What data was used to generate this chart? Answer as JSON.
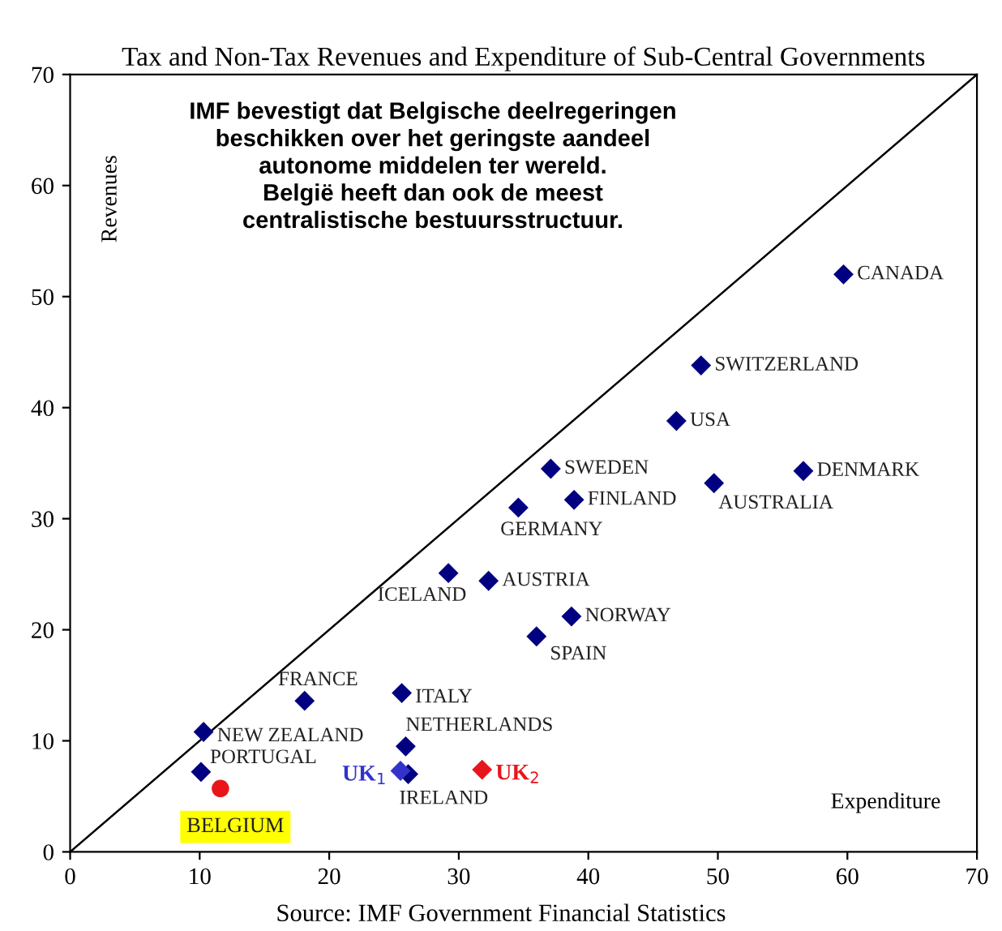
{
  "chart_data": {
    "type": "scatter",
    "title": "Tax and Non-Tax Revenues and Expenditure of Sub-Central Governments",
    "xlabel": "Expenditure",
    "ylabel": "Revenues",
    "xlim": [
      0,
      70
    ],
    "ylim": [
      0,
      70
    ],
    "xticks": [
      0,
      10,
      20,
      30,
      40,
      50,
      60,
      70
    ],
    "yticks": [
      0,
      10,
      20,
      30,
      40,
      50,
      60,
      70
    ],
    "grid": false,
    "legend": false,
    "series": [
      {
        "type": "line",
        "color": "#000000",
        "x": [
          0,
          70
        ],
        "values": [
          0,
          70
        ],
        "marker": "none"
      },
      {
        "color": "#000080",
        "marker": "diamond",
        "x": [
          59.7,
          48.7,
          46.8,
          37.1,
          56.6,
          38.9,
          49.7,
          34.6,
          29.2,
          32.3,
          38.7,
          36.0,
          18.1,
          25.6,
          10.3,
          25.9,
          10.1,
          26.1
        ],
        "values": [
          52.0,
          43.8,
          38.8,
          34.5,
          34.3,
          31.7,
          33.2,
          31.0,
          25.1,
          24.4,
          21.2,
          19.4,
          13.6,
          14.3,
          10.8,
          9.5,
          7.2,
          7.0
        ]
      },
      {
        "name": "UK$_{1}$",
        "color": "#3333cc",
        "marker": "diamond",
        "x": [
          25.5
        ],
        "values": [
          7.3
        ]
      },
      {
        "name": "UK$_{2}$",
        "color": "#e8161b",
        "marker": "diamond",
        "x": [
          31.8
        ],
        "values": [
          7.4
        ]
      },
      {
        "name": "BELGIUM",
        "color": "#e8161b",
        "marker": "circle",
        "x": [
          11.6
        ],
        "values": [
          5.7
        ]
      }
    ],
    "annotations": [
      "IMF bevestigt dat Belgische deelregeringen\nbeschikken over het geringste aandeel\nautonome middelen ter wereld.\nBelgië heeft dan ook de meest\ncentralistische bestuursstructuur.",
      "Source: IMF Government Financial Statistics",
      {
        "text": "CANADA",
        "x": 59.7,
        "y": 52.0
      },
      {
        "text": "SWITZERLAND",
        "x": 48.7,
        "y": 43.8
      },
      {
        "text": "USA",
        "x": 46.8,
        "y": 38.8
      },
      {
        "text": "SWEDEN",
        "x": 37.1,
        "y": 34.5
      },
      {
        "text": "DENMARK",
        "x": 56.6,
        "y": 34.3
      },
      {
        "text": "FINLAND",
        "x": 38.9,
        "y": 31.7
      },
      {
        "text": "AUSTRALIA",
        "x": 49.7,
        "y": 33.2
      },
      {
        "text": "GERMANY",
        "x": 34.6,
        "y": 31.0
      },
      {
        "text": "ICELAND",
        "x": 29.2,
        "y": 25.1
      },
      {
        "text": "AUSTRIA",
        "x": 32.3,
        "y": 24.4
      },
      {
        "text": "NORWAY",
        "x": 38.7,
        "y": 21.2
      },
      {
        "text": "SPAIN",
        "x": 36.0,
        "y": 19.4
      },
      {
        "text": "FRANCE",
        "x": 18.1,
        "y": 13.6
      },
      {
        "text": "ITALY",
        "x": 25.6,
        "y": 14.3
      },
      {
        "text": "NEW ZEALAND",
        "x": 10.3,
        "y": 10.8
      },
      {
        "text": "NETHERLANDS",
        "x": 25.9,
        "y": 9.5
      },
      {
        "text": "PORTUGAL",
        "x": 10.1,
        "y": 7.2
      },
      {
        "text": "IRELAND",
        "x": 26.1,
        "y": 7.0
      }
    ]
  }
}
